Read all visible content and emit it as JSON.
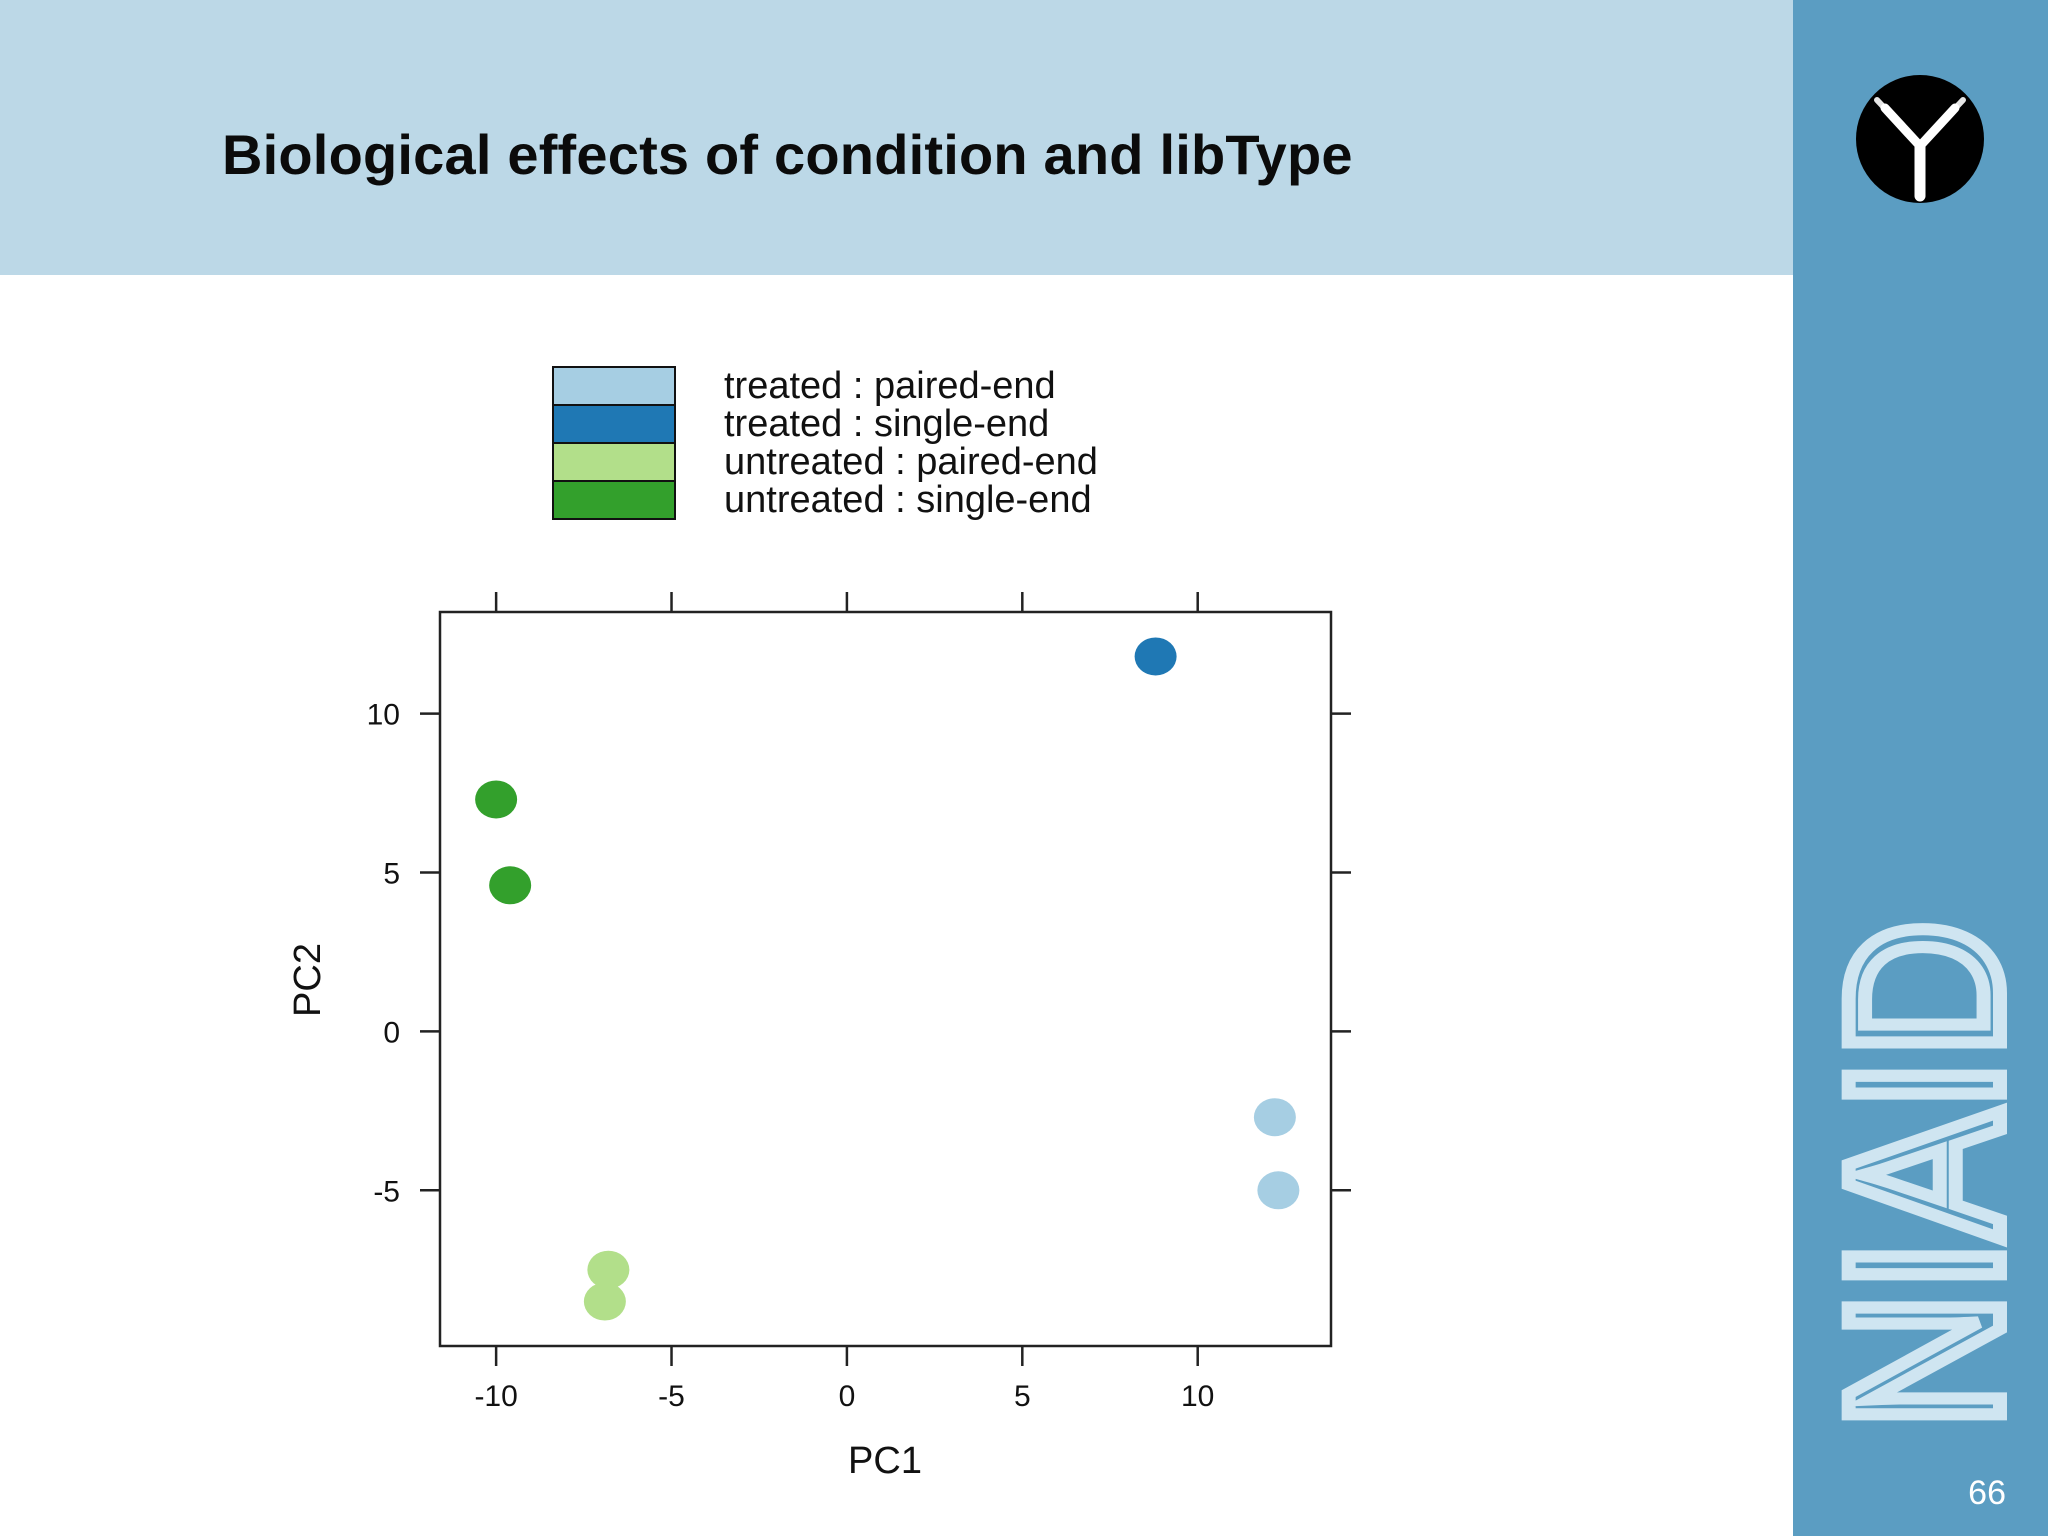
{
  "slide": {
    "title": "Biological effects of condition and libType",
    "page_number": "66",
    "logo_text": "NIAID"
  },
  "icons": {
    "logo": "antibody-icon"
  },
  "chart_data": {
    "type": "scatter",
    "title": "",
    "xlabel": "PC1",
    "ylabel": "PC2",
    "xlim": [
      -11.6,
      13.8
    ],
    "ylim": [
      -9.9,
      13.2
    ],
    "xticks": [
      -10,
      -5,
      0,
      5,
      10
    ],
    "yticks": [
      -5,
      0,
      5,
      10
    ],
    "grid": false,
    "legend": "top",
    "series": [
      {
        "name": "treated : paired-end",
        "color": "#a6cee3",
        "points": [
          [
            12.2,
            -2.7
          ],
          [
            12.3,
            -5.0
          ]
        ]
      },
      {
        "name": "treated : single-end",
        "color": "#1f78b4",
        "points": [
          [
            8.8,
            11.8
          ]
        ]
      },
      {
        "name": "untreated : paired-end",
        "color": "#b2df8a",
        "points": [
          [
            -6.8,
            -7.5
          ],
          [
            -6.9,
            -8.5
          ]
        ]
      },
      {
        "name": "untreated : single-end",
        "color": "#33a02c",
        "points": [
          [
            -10.0,
            7.3
          ],
          [
            -9.6,
            4.6
          ]
        ]
      }
    ]
  }
}
